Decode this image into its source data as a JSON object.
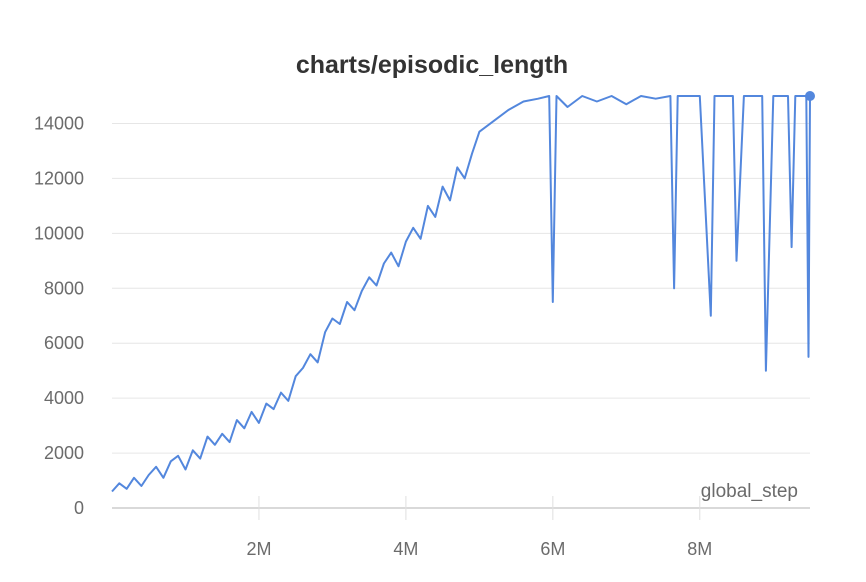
{
  "chart_data": {
    "type": "line",
    "title": "charts/episodic_length",
    "xlabel": "global_step",
    "ylabel": "",
    "xlim": [
      0,
      9500000
    ],
    "ylim": [
      0,
      15000
    ],
    "x_ticks": [
      {
        "value": 2000000,
        "label": "2M"
      },
      {
        "value": 4000000,
        "label": "4M"
      },
      {
        "value": 6000000,
        "label": "6M"
      },
      {
        "value": 8000000,
        "label": "8M"
      }
    ],
    "y_ticks": [
      {
        "value": 0,
        "label": "0"
      },
      {
        "value": 2000,
        "label": "2000"
      },
      {
        "value": 4000,
        "label": "4000"
      },
      {
        "value": 6000,
        "label": "6000"
      },
      {
        "value": 8000,
        "label": "8000"
      },
      {
        "value": 10000,
        "label": "10000"
      },
      {
        "value": 12000,
        "label": "12000"
      },
      {
        "value": 14000,
        "label": "14000"
      }
    ],
    "grid": true,
    "line_color": "#5387DD",
    "series": [
      {
        "x": [
          0,
          100000,
          200000,
          300000,
          400000,
          500000,
          600000,
          700000,
          800000,
          900000,
          1000000,
          1100000,
          1200000,
          1300000,
          1400000,
          1500000,
          1600000,
          1700000,
          1800000,
          1900000,
          2000000,
          2100000,
          2200000,
          2300000,
          2400000,
          2500000,
          2600000,
          2700000,
          2800000,
          2900000,
          3000000,
          3100000,
          3200000,
          3300000,
          3400000,
          3500000,
          3600000,
          3700000,
          3800000,
          3900000,
          4000000,
          4100000,
          4200000,
          4300000,
          4400000,
          4500000,
          4600000,
          4700000,
          4800000,
          4900000,
          5000000,
          5200000,
          5400000,
          5600000,
          5800000,
          5950000,
          6000000,
          6050000,
          6200000,
          6400000,
          6600000,
          6800000,
          7000000,
          7200000,
          7400000,
          7600000,
          7650000,
          7700000,
          7800000,
          8000000,
          8150000,
          8200000,
          8300000,
          8450000,
          8500000,
          8600000,
          8850000,
          8900000,
          9000000,
          9200000,
          9250000,
          9300000,
          9450000,
          9480000,
          9500000
        ],
        "y": [
          600,
          900,
          700,
          1100,
          800,
          1200,
          1500,
          1100,
          1700,
          1900,
          1400,
          2100,
          1800,
          2600,
          2300,
          2700,
          2400,
          3200,
          2900,
          3500,
          3100,
          3800,
          3600,
          4200,
          3900,
          4800,
          5100,
          5600,
          5300,
          6400,
          6900,
          6700,
          7500,
          7200,
          7900,
          8400,
          8100,
          8900,
          9300,
          8800,
          9700,
          10200,
          9800,
          11000,
          10600,
          11700,
          11200,
          12400,
          12000,
          12900,
          13700,
          14100,
          14500,
          14800,
          14900,
          15000,
          7500,
          15000,
          14600,
          15000,
          14800,
          15000,
          14700,
          15000,
          14900,
          15000,
          8000,
          15000,
          15000,
          15000,
          7000,
          15000,
          15000,
          15000,
          9000,
          15000,
          15000,
          5000,
          15000,
          15000,
          9500,
          15000,
          15000,
          5500,
          15000
        ]
      }
    ]
  }
}
